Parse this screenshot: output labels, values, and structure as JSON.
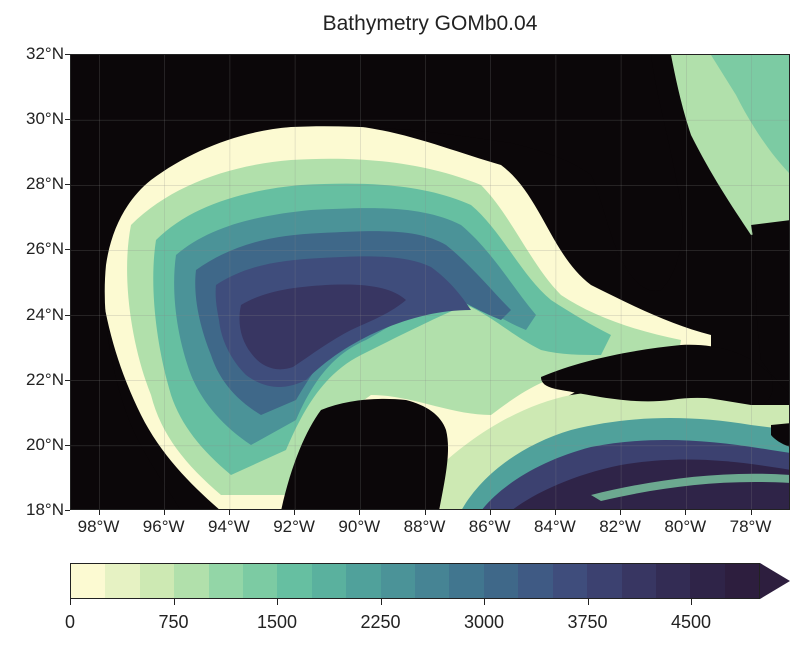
{
  "title": "Bathymetry GOMb0.04",
  "lat_labels": [
    "32°N",
    "30°N",
    "28°N",
    "26°N",
    "24°N",
    "22°N",
    "20°N",
    "18°N"
  ],
  "lon_labels": [
    "98°W",
    "96°W",
    "94°W",
    "92°W",
    "90°W",
    "88°W",
    "86°W",
    "84°W",
    "82°W",
    "80°W",
    "78°W"
  ],
  "colorbar": {
    "tick_labels": [
      "0",
      "750",
      "1500",
      "2250",
      "3000",
      "3750",
      "4500"
    ],
    "levels": 20,
    "colors": [
      "#fcfad2",
      "#e6f2c3",
      "#cde9b3",
      "#b1e0ab",
      "#93d6a7",
      "#7ccba3",
      "#66bfa1",
      "#5ab19e",
      "#50a19b",
      "#4b9398",
      "#468494",
      "#41768f",
      "#3f6889",
      "#3f5a84",
      "#3f4d7c",
      "#3c4170",
      "#383662",
      "#332c54",
      "#2f2448",
      "#2d1e3e"
    ],
    "land_color": "#0b0709"
  }
}
